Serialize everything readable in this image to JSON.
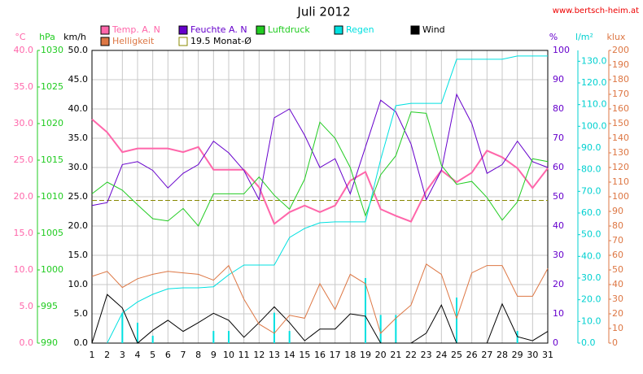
{
  "chart_data": {
    "type": "line",
    "title": "Juli 2012",
    "source": "www.bertsch-heim.at",
    "categories": [
      "1",
      "2",
      "3",
      "4",
      "5",
      "6",
      "7",
      "8",
      "9",
      "10",
      "11",
      "12",
      "13",
      "14",
      "15",
      "16",
      "17",
      "18",
      "19",
      "20",
      "21",
      "22",
      "23",
      "24",
      "25",
      "26",
      "27",
      "28",
      "29",
      "30",
      "31"
    ],
    "grid": true,
    "axes": [
      {
        "unit": "°C",
        "color": "#ff66aa",
        "lim": [
          0,
          40
        ],
        "ticks": [
          {
            "value": 0,
            "label": "0.0"
          },
          {
            "value": 5,
            "label": "5.0"
          },
          {
            "value": 10,
            "label": "10.0"
          },
          {
            "value": 15,
            "label": "15.0"
          },
          {
            "value": 20,
            "label": "20.0"
          },
          {
            "value": 25,
            "label": "25.0"
          },
          {
            "value": 30,
            "label": "30.0"
          },
          {
            "value": 35,
            "label": "35.0"
          },
          {
            "value": 40,
            "label": "40.0"
          }
        ]
      },
      {
        "unit": "hPa",
        "color": "#22cc22",
        "lim": [
          990,
          1030
        ],
        "ticks": [
          990,
          995,
          1000,
          1005,
          1010,
          1015,
          1020,
          1025,
          1030
        ]
      },
      {
        "unit": "km/h",
        "color": "#000000",
        "lim": [
          0,
          50
        ],
        "ticks": [
          {
            "value": 0,
            "label": "0.0"
          },
          {
            "value": 5,
            "label": "5.0"
          },
          {
            "value": 10,
            "label": "10.0"
          },
          {
            "value": 15,
            "label": "15.0"
          },
          {
            "value": 20,
            "label": "20.0"
          },
          {
            "value": 25,
            "label": "25.0"
          },
          {
            "value": 30,
            "label": "30.0"
          },
          {
            "value": 35,
            "label": "35.0"
          },
          {
            "value": 40,
            "label": "40.0"
          },
          {
            "value": 45,
            "label": "45.0"
          },
          {
            "value": 50,
            "label": "50.0"
          }
        ]
      },
      {
        "unit": "%",
        "color": "#6600cc",
        "lim": [
          0,
          100
        ],
        "ticks": [
          0,
          10,
          20,
          30,
          40,
          50,
          60,
          70,
          80,
          90,
          100
        ]
      },
      {
        "unit": "l/m²",
        "color": "#00d0d0",
        "lim": [
          0,
          135
        ],
        "ticks": [
          {
            "value": 0,
            "label": "0.0"
          },
          {
            "value": 10,
            "label": "10.0"
          },
          {
            "value": 20,
            "label": "20.0"
          },
          {
            "value": 30,
            "label": "30.0"
          },
          {
            "value": 40,
            "label": "40.0"
          },
          {
            "value": 50,
            "label": "50.0"
          },
          {
            "value": 60,
            "label": "60.0"
          },
          {
            "value": 70,
            "label": "70.0"
          },
          {
            "value": 80,
            "label": "80.0"
          },
          {
            "value": 90,
            "label": "90.0"
          },
          {
            "value": 100,
            "label": "100.0"
          },
          {
            "value": 110,
            "label": "110.0"
          },
          {
            "value": 120,
            "label": "120.0"
          },
          {
            "value": 130,
            "label": "130.0"
          }
        ]
      },
      {
        "unit": "klux",
        "color": "#dd7744",
        "lim": [
          0,
          200
        ],
        "ticks": [
          0,
          10,
          20,
          30,
          40,
          50,
          60,
          70,
          80,
          90,
          100,
          110,
          120,
          130,
          140,
          150,
          160,
          170,
          180,
          190,
          200
        ]
      }
    ],
    "series": [
      {
        "name": "Temp. A. N",
        "color": "#ff66aa",
        "axis": "°C",
        "values": [
          30.6,
          28.8,
          26.1,
          26.6,
          26.6,
          26.6,
          26.1,
          26.8,
          23.7,
          23.7,
          23.7,
          21.3,
          16.3,
          17.9,
          18.8,
          17.9,
          18.8,
          22.2,
          23.4,
          18.3,
          17.4,
          16.6,
          20.8,
          23.6,
          22,
          23.3,
          26.3,
          25.4,
          23.9,
          21.2,
          23.9
        ]
      },
      {
        "name": "Feuchte A. N",
        "color": "#6600cc",
        "axis": "%",
        "values": [
          47,
          48,
          61,
          62,
          59,
          53,
          58,
          61,
          69,
          65,
          59,
          49,
          77,
          80,
          71,
          60,
          63,
          51,
          67,
          83,
          79,
          68,
          49,
          59,
          85,
          75,
          58,
          61,
          69,
          62,
          60
        ]
      },
      {
        "name": "Luftdruck",
        "color": "#22cc22",
        "axis": "hPa",
        "values": [
          1010.4,
          1012,
          1010.9,
          1008.9,
          1007,
          1006.7,
          1008.4,
          1006,
          1010.4,
          1010.4,
          1010.4,
          1012.7,
          1010.2,
          1008.3,
          1012.4,
          1020.2,
          1018,
          1014,
          1007.4,
          1013,
          1015.6,
          1021.6,
          1021.4,
          1014.3,
          1011.7,
          1012.1,
          1009.9,
          1006.8,
          1009.3,
          1015.2,
          1014.8
        ]
      },
      {
        "name": "Regen",
        "color": "#00e0e0",
        "axis": "l/m²",
        "values": [
          null,
          0,
          13.9,
          19,
          22.5,
          25,
          25.5,
          25.5,
          26,
          31.5,
          36,
          36,
          36,
          48.7,
          52.9,
          55.5,
          55.9,
          55.9,
          55.9,
          84.7,
          109.5,
          110.6,
          110.6,
          110.6,
          130.9,
          130.9,
          130.9,
          130.9,
          132.4,
          132.4,
          132.4
        ],
        "daily": [
          0,
          0,
          13.9,
          9.4,
          3.4,
          0,
          0,
          0,
          5.6,
          5.6,
          0,
          0,
          14,
          5.6,
          0,
          0,
          0,
          0,
          30,
          13,
          13,
          0,
          0,
          0,
          21,
          0,
          0,
          0,
          5.6,
          0,
          0
        ]
      },
      {
        "name": "Wind",
        "color": "#000000",
        "axis": "km/h",
        "values": [
          0,
          8.3,
          6,
          0,
          2.2,
          3.9,
          2,
          3.5,
          5.1,
          3.9,
          1,
          3.5,
          6.2,
          3.5,
          0.4,
          2.4,
          2.4,
          5,
          4.6,
          0,
          0,
          0,
          1.7,
          6.5,
          0,
          0,
          0,
          6.7,
          1.1,
          0.4,
          2
        ]
      },
      {
        "name": "Helligkeit",
        "color": "#dd7744",
        "axis": "klux",
        "values": [
          45.6,
          49,
          38,
          44,
          47,
          49,
          48,
          47,
          43,
          53,
          30,
          13,
          6.7,
          19,
          17,
          40.6,
          23,
          47,
          40.6,
          6.7,
          17,
          26,
          54,
          47,
          17,
          48,
          53,
          53,
          32,
          32,
          51
        ]
      }
    ],
    "average": {
      "label": "19.5 Monat-Ø",
      "value": 19.5,
      "axis": "°C",
      "color": "#888800"
    }
  }
}
